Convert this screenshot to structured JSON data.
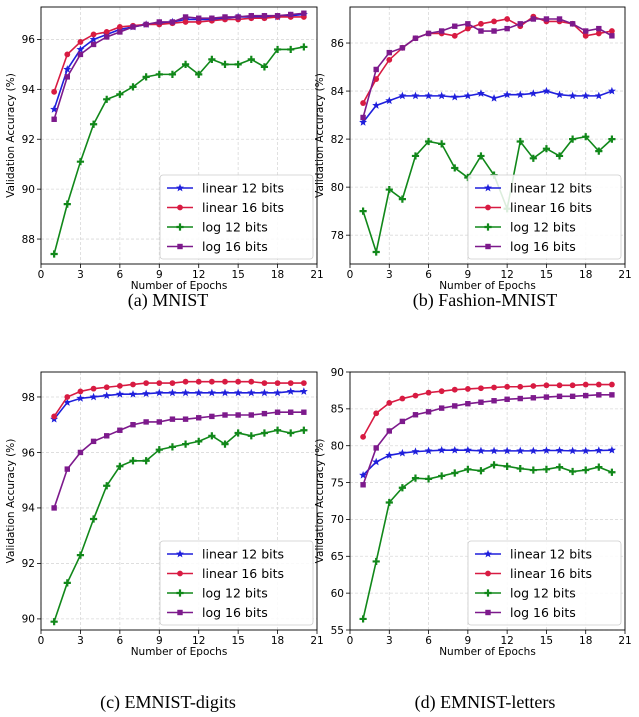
{
  "chart_data": [
    {
      "type": "line",
      "caption": "(a) MNIST",
      "xlabel": "Number of Epochs",
      "ylabel": "Validation Accuracy (%)",
      "xlim": [
        0,
        21
      ],
      "ylim": [
        87.0,
        97.3
      ],
      "xticks": [
        0,
        3,
        6,
        9,
        12,
        15,
        18,
        21
      ],
      "yticks": [
        88,
        90,
        92,
        94,
        96
      ],
      "grid": true,
      "legend": "bottom-right",
      "x": [
        1,
        2,
        3,
        4,
        5,
        6,
        7,
        8,
        9,
        10,
        11,
        12,
        13,
        14,
        15,
        16,
        17,
        18,
        19,
        20
      ],
      "series": [
        {
          "name": "linear 12 bits",
          "color": "#1f1fdc",
          "marker": "star",
          "values": [
            93.2,
            94.8,
            95.6,
            96.0,
            96.2,
            96.4,
            96.5,
            96.6,
            96.65,
            96.7,
            96.8,
            96.8,
            96.8,
            96.85,
            96.9,
            96.9,
            96.9,
            96.9,
            96.95,
            97.0
          ]
        },
        {
          "name": "linear 16 bits",
          "color": "#d81b42",
          "marker": "circle",
          "values": [
            93.9,
            95.4,
            95.9,
            96.2,
            96.3,
            96.5,
            96.55,
            96.6,
            96.6,
            96.65,
            96.7,
            96.7,
            96.75,
            96.8,
            96.8,
            96.85,
            96.85,
            96.9,
            96.9,
            96.9
          ]
        },
        {
          "name": "log 12 bits",
          "color": "#11881a",
          "marker": "plus",
          "values": [
            87.4,
            89.4,
            91.1,
            92.6,
            93.6,
            93.8,
            94.1,
            94.5,
            94.6,
            94.6,
            95.0,
            94.6,
            95.2,
            95.0,
            95.0,
            95.2,
            94.9,
            95.6,
            95.6,
            95.7
          ]
        },
        {
          "name": "log 16 bits",
          "color": "#7d1a8c",
          "marker": "square",
          "values": [
            92.8,
            94.5,
            95.4,
            95.8,
            96.1,
            96.3,
            96.5,
            96.6,
            96.7,
            96.7,
            96.9,
            96.85,
            96.85,
            96.9,
            96.9,
            96.95,
            96.95,
            96.95,
            97.0,
            97.05
          ]
        }
      ]
    },
    {
      "type": "line",
      "caption": "(b) Fashion-MNIST",
      "xlabel": "Number of Epochs",
      "ylabel": "Validation Accuracy (%)",
      "xlim": [
        0,
        21
      ],
      "ylim": [
        76.8,
        87.5
      ],
      "xticks": [
        0,
        3,
        6,
        9,
        12,
        15,
        18,
        21
      ],
      "yticks": [
        78,
        80,
        82,
        84,
        86
      ],
      "grid": true,
      "legend": "bottom-right",
      "x": [
        1,
        2,
        3,
        4,
        5,
        6,
        7,
        8,
        9,
        10,
        11,
        12,
        13,
        14,
        15,
        16,
        17,
        18,
        19,
        20
      ],
      "series": [
        {
          "name": "linear 12 bits",
          "color": "#1f1fdc",
          "marker": "star",
          "values": [
            82.7,
            83.4,
            83.6,
            83.8,
            83.8,
            83.8,
            83.8,
            83.75,
            83.8,
            83.9,
            83.7,
            83.85,
            83.85,
            83.9,
            84.0,
            83.85,
            83.8,
            83.8,
            83.8,
            84.0
          ]
        },
        {
          "name": "linear 16 bits",
          "color": "#d81b42",
          "marker": "circle",
          "values": [
            83.5,
            84.5,
            85.3,
            85.8,
            86.2,
            86.4,
            86.4,
            86.3,
            86.6,
            86.8,
            86.9,
            87.0,
            86.7,
            87.1,
            86.9,
            86.9,
            86.8,
            86.3,
            86.4,
            86.5
          ]
        },
        {
          "name": "log 12 bits",
          "color": "#11881a",
          "marker": "plus",
          "values": [
            79.0,
            77.3,
            79.9,
            79.5,
            81.3,
            81.9,
            81.8,
            80.8,
            80.4,
            81.3,
            80.5,
            79.1,
            81.9,
            81.2,
            81.6,
            81.3,
            82.0,
            82.1,
            81.5,
            82.0
          ]
        },
        {
          "name": "log 16 bits",
          "color": "#7d1a8c",
          "marker": "square",
          "values": [
            82.9,
            84.9,
            85.6,
            85.8,
            86.2,
            86.4,
            86.5,
            86.7,
            86.8,
            86.5,
            86.5,
            86.6,
            86.8,
            87.0,
            87.0,
            87.0,
            86.8,
            86.5,
            86.6,
            86.3
          ]
        }
      ]
    },
    {
      "type": "line",
      "caption": "(c) EMNIST-digits",
      "xlabel": "Number of Epochs",
      "ylabel": "Validation Accuracy (%)",
      "xlim": [
        0,
        21
      ],
      "ylim": [
        89.6,
        98.9
      ],
      "xticks": [
        0,
        3,
        6,
        9,
        12,
        15,
        18,
        21
      ],
      "yticks": [
        90,
        92,
        94,
        96,
        98
      ],
      "grid": true,
      "legend": "bottom-right",
      "x": [
        1,
        2,
        3,
        4,
        5,
        6,
        7,
        8,
        9,
        10,
        11,
        12,
        13,
        14,
        15,
        16,
        17,
        18,
        19,
        20
      ],
      "series": [
        {
          "name": "linear 12 bits",
          "color": "#1f1fdc",
          "marker": "star",
          "values": [
            97.2,
            97.8,
            97.95,
            98.0,
            98.05,
            98.1,
            98.1,
            98.12,
            98.15,
            98.15,
            98.15,
            98.15,
            98.15,
            98.15,
            98.15,
            98.15,
            98.15,
            98.15,
            98.2,
            98.2
          ]
        },
        {
          "name": "linear 16 bits",
          "color": "#d81b42",
          "marker": "circle",
          "values": [
            97.3,
            98.0,
            98.2,
            98.3,
            98.35,
            98.4,
            98.45,
            98.5,
            98.5,
            98.5,
            98.55,
            98.55,
            98.55,
            98.55,
            98.55,
            98.55,
            98.5,
            98.5,
            98.5,
            98.5
          ]
        },
        {
          "name": "log 12 bits",
          "color": "#11881a",
          "marker": "plus",
          "values": [
            89.9,
            91.3,
            92.3,
            93.6,
            94.8,
            95.5,
            95.7,
            95.7,
            96.1,
            96.2,
            96.3,
            96.4,
            96.6,
            96.3,
            96.7,
            96.6,
            96.7,
            96.8,
            96.7,
            96.8
          ]
        },
        {
          "name": "log 16 bits",
          "color": "#7d1a8c",
          "marker": "square",
          "values": [
            94.0,
            95.4,
            96.0,
            96.4,
            96.6,
            96.8,
            97.0,
            97.1,
            97.1,
            97.2,
            97.2,
            97.25,
            97.3,
            97.35,
            97.35,
            97.35,
            97.4,
            97.45,
            97.45,
            97.45
          ]
        }
      ]
    },
    {
      "type": "line",
      "caption": "(d) EMNIST-letters",
      "xlabel": "Number of Epochs",
      "ylabel": "Validation Accuracy (%)",
      "xlim": [
        0,
        21
      ],
      "ylim": [
        55,
        90
      ],
      "xticks": [
        0,
        3,
        6,
        9,
        12,
        15,
        18,
        21
      ],
      "yticks": [
        55,
        60,
        65,
        70,
        75,
        80,
        85,
        90
      ],
      "grid": true,
      "legend": "bottom-right",
      "x": [
        1,
        2,
        3,
        4,
        5,
        6,
        7,
        8,
        9,
        10,
        11,
        12,
        13,
        14,
        15,
        16,
        17,
        18,
        19,
        20
      ],
      "series": [
        {
          "name": "linear 12 bits",
          "color": "#1f1fdc",
          "marker": "star",
          "values": [
            76.0,
            77.8,
            78.7,
            79.0,
            79.2,
            79.3,
            79.4,
            79.4,
            79.4,
            79.3,
            79.3,
            79.3,
            79.3,
            79.3,
            79.35,
            79.35,
            79.3,
            79.3,
            79.35,
            79.4
          ]
        },
        {
          "name": "linear 16 bits",
          "color": "#d81b42",
          "marker": "circle",
          "values": [
            81.2,
            84.4,
            85.8,
            86.4,
            86.8,
            87.2,
            87.4,
            87.6,
            87.7,
            87.8,
            87.9,
            88.0,
            88.0,
            88.1,
            88.2,
            88.2,
            88.2,
            88.3,
            88.3,
            88.3
          ]
        },
        {
          "name": "log 12 bits",
          "color": "#11881a",
          "marker": "plus",
          "values": [
            56.5,
            64.3,
            72.3,
            74.3,
            75.6,
            75.5,
            75.9,
            76.3,
            76.8,
            76.6,
            77.4,
            77.2,
            76.9,
            76.7,
            76.8,
            77.1,
            76.5,
            76.7,
            77.1,
            76.4
          ]
        },
        {
          "name": "log 16 bits",
          "color": "#7d1a8c",
          "marker": "square",
          "values": [
            74.7,
            79.7,
            82.0,
            83.3,
            84.2,
            84.6,
            85.1,
            85.4,
            85.7,
            85.9,
            86.1,
            86.3,
            86.4,
            86.5,
            86.6,
            86.7,
            86.7,
            86.8,
            86.9,
            86.9
          ]
        }
      ]
    }
  ]
}
